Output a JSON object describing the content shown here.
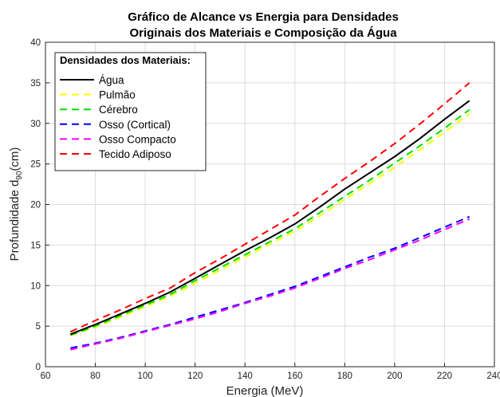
{
  "chart_data": {
    "type": "line",
    "title_lines": [
      "Gráfico de Alcance vs Energia para Densidades",
      "Originais dos Materiais e Composição da Água"
    ],
    "xlabel": "Energia (MeV)",
    "ylabel_main": "Profundidade d",
    "ylabel_sub": "90",
    "ylabel_end": "(cm)",
    "xlim": [
      60,
      240
    ],
    "ylim": [
      0,
      40
    ],
    "xticks": [
      60,
      80,
      100,
      120,
      140,
      160,
      180,
      200,
      220,
      240
    ],
    "yticks": [
      0,
      5,
      10,
      15,
      20,
      25,
      30,
      35,
      40
    ],
    "grid": true,
    "legend": {
      "title": "Densidades dos Materiais:",
      "placement": "top-left"
    },
    "x": [
      70,
      80,
      90,
      100,
      110,
      120,
      130,
      140,
      150,
      160,
      170,
      180,
      190,
      200,
      210,
      220,
      230
    ],
    "series": [
      {
        "name": "Água",
        "color": "#000000",
        "dash": "solid",
        "values": [
          4.0,
          5.2,
          6.5,
          7.8,
          9.2,
          10.9,
          12.6,
          14.3,
          15.9,
          17.6,
          19.7,
          21.9,
          23.9,
          25.9,
          28.1,
          30.5,
          32.8
        ]
      },
      {
        "name": "Pulmão",
        "color": "#ffff00",
        "dash": "dashed",
        "values": [
          3.8,
          4.9,
          6.1,
          7.4,
          8.7,
          10.3,
          11.9,
          13.5,
          15.1,
          16.7,
          18.6,
          20.6,
          22.6,
          24.6,
          26.7,
          28.9,
          31.2
        ]
      },
      {
        "name": "Cérebro",
        "color": "#00e000",
        "dash": "dashed",
        "values": [
          3.9,
          5.0,
          6.3,
          7.6,
          8.9,
          10.6,
          12.2,
          13.8,
          15.4,
          17.0,
          19.0,
          21.0,
          23.0,
          25.1,
          27.2,
          29.4,
          31.7
        ]
      },
      {
        "name": "Osso (Cortical)",
        "color": "#0000ff",
        "dash": "dashed",
        "values": [
          2.3,
          2.9,
          3.6,
          4.4,
          5.2,
          6.1,
          7.0,
          7.9,
          8.9,
          9.9,
          11.1,
          12.3,
          13.5,
          14.6,
          15.9,
          17.2,
          18.5
        ]
      },
      {
        "name": "Osso Compacto",
        "color": "#ff00ff",
        "dash": "dashed",
        "values": [
          2.1,
          2.8,
          3.5,
          4.3,
          5.1,
          5.9,
          6.8,
          7.8,
          8.7,
          9.7,
          10.9,
          12.1,
          13.2,
          14.4,
          15.6,
          16.9,
          18.2
        ]
      },
      {
        "name": "Tecido Adiposo",
        "color": "#ff0000",
        "dash": "dashed",
        "values": [
          4.3,
          5.7,
          7.0,
          8.4,
          9.7,
          11.6,
          13.3,
          15.1,
          16.9,
          18.7,
          21.0,
          23.2,
          25.3,
          27.5,
          29.9,
          32.4,
          35.0
        ]
      }
    ]
  }
}
